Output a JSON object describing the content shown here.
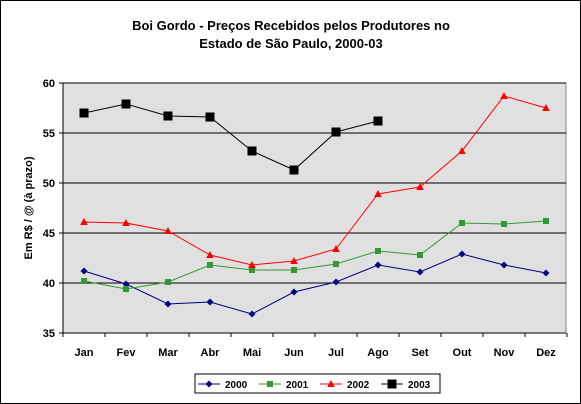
{
  "chart_data": {
    "type": "line",
    "title_lines": [
      "Boi Gordo - Preços Recebidos pelos Produtores no",
      "Estado de São Paulo, 2000-03"
    ],
    "xlabel": "",
    "ylabel": "Em R$ / @ (à prazo)",
    "categories": [
      "Jan",
      "Fev",
      "Mar",
      "Abr",
      "Mai",
      "Jun",
      "Jul",
      "Ago",
      "Set",
      "Out",
      "Nov",
      "Dez"
    ],
    "ylim": [
      35,
      60
    ],
    "yticks": [
      35,
      40,
      45,
      50,
      55,
      60
    ],
    "grid": "horizontal",
    "legend_position": "bottom",
    "plot_background": "#e0e0e0",
    "series": [
      {
        "name": "2000",
        "color": "#000080",
        "marker": "diamond",
        "values": [
          41.2,
          39.9,
          37.9,
          38.1,
          36.9,
          39.1,
          40.1,
          41.8,
          41.1,
          42.9,
          41.8,
          41.0
        ]
      },
      {
        "name": "2001",
        "color": "#339933",
        "marker": "square",
        "values": [
          40.2,
          39.4,
          40.1,
          41.8,
          41.3,
          41.3,
          41.9,
          43.2,
          42.8,
          46.0,
          45.9,
          46.2
        ]
      },
      {
        "name": "2002",
        "color": "#ff0000",
        "marker": "triangle",
        "values": [
          46.1,
          46.0,
          45.2,
          42.8,
          41.8,
          42.2,
          43.4,
          48.9,
          49.6,
          53.2,
          58.7,
          57.5
        ]
      },
      {
        "name": "2003",
        "color": "#000000",
        "marker": "square-large",
        "values": [
          57.0,
          57.9,
          56.7,
          56.6,
          53.2,
          51.3,
          55.1,
          56.2,
          null,
          null,
          null,
          null
        ]
      }
    ]
  }
}
